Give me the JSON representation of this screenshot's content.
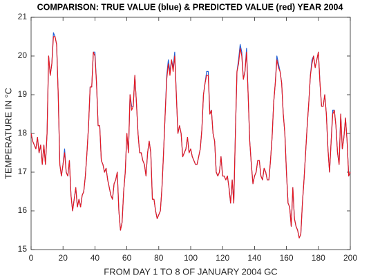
{
  "chart_data": {
    "type": "line",
    "title": "COMPARISON: TRUE VALUE (blue) & PREDICTED VALUE (red) YEAR 2004",
    "x_label": "FROM DAY 1 TO 8 OF JANUARY 2004 GC",
    "y_label": "TEMPERATURE IN °C",
    "x": [
      0,
      1,
      2,
      3,
      4,
      5,
      6,
      7,
      8,
      9,
      10,
      11,
      12,
      13,
      14,
      15,
      16,
      17,
      18,
      19,
      20,
      21,
      22,
      23,
      24,
      25,
      26,
      27,
      28,
      29,
      30,
      31,
      32,
      33,
      34,
      35,
      36,
      37,
      38,
      39,
      40,
      41,
      42,
      43,
      44,
      45,
      46,
      47,
      48,
      49,
      50,
      51,
      52,
      53,
      54,
      55,
      56,
      57,
      58,
      59,
      60,
      61,
      62,
      63,
      64,
      65,
      66,
      67,
      68,
      69,
      70,
      71,
      72,
      73,
      74,
      75,
      76,
      77,
      78,
      79,
      80,
      81,
      82,
      83,
      84,
      85,
      86,
      87,
      88,
      89,
      90,
      91,
      92,
      93,
      94,
      95,
      96,
      97,
      98,
      99,
      100,
      101,
      102,
      103,
      104,
      105,
      106,
      107,
      108,
      109,
      110,
      111,
      112,
      113,
      114,
      115,
      116,
      117,
      118,
      119,
      120,
      121,
      122,
      123,
      124,
      125,
      126,
      127,
      128,
      129,
      130,
      131,
      132,
      133,
      134,
      135,
      136,
      137,
      138,
      139,
      140,
      141,
      142,
      143,
      144,
      145,
      146,
      147,
      148,
      149,
      150,
      151,
      152,
      153,
      154,
      155,
      156,
      157,
      158,
      159,
      160,
      161,
      162,
      163,
      164,
      165,
      166,
      167,
      168,
      169,
      170,
      171,
      172,
      173,
      174,
      175,
      176,
      177,
      178,
      179,
      180,
      181,
      182,
      183,
      184,
      185,
      186,
      187,
      188,
      189,
      190,
      191,
      192,
      193,
      194,
      195,
      196,
      197,
      198,
      199,
      200
    ],
    "series": [
      {
        "name": "TRUE VALUE",
        "color": "#1f5fd6",
        "values": [
          18.0,
          17.8,
          17.7,
          17.6,
          17.9,
          17.5,
          17.7,
          17.2,
          17.7,
          17.2,
          18.0,
          20.0,
          19.5,
          19.8,
          20.6,
          20.5,
          20.3,
          19.0,
          17.2,
          16.9,
          17.2,
          17.6,
          17.0,
          16.9,
          17.3,
          16.4,
          16.0,
          16.3,
          16.6,
          16.1,
          16.3,
          16.1,
          16.4,
          16.5,
          16.9,
          17.5,
          18.2,
          19.2,
          19.2,
          20.1,
          20.1,
          19.3,
          18.2,
          18.2,
          17.3,
          17.2,
          17.0,
          17.1,
          16.8,
          16.6,
          16.4,
          16.3,
          16.7,
          16.8,
          17.0,
          16.0,
          15.5,
          15.7,
          16.5,
          17.0,
          18.0,
          17.5,
          19.0,
          18.7,
          18.7,
          19.5,
          18.8,
          18.0,
          17.5,
          17.5,
          17.3,
          17.2,
          16.9,
          17.5,
          17.8,
          17.5,
          16.3,
          16.3,
          16.0,
          15.8,
          15.9,
          16.0,
          16.6,
          17.5,
          18.5,
          19.5,
          19.9,
          19.6,
          19.9,
          19.7,
          20.1,
          19.0,
          18.0,
          18.2,
          18.0,
          17.4,
          17.5,
          17.6,
          17.9,
          17.5,
          17.6,
          17.4,
          17.3,
          17.2,
          17.2,
          17.4,
          17.6,
          18.1,
          19.0,
          19.3,
          19.6,
          19.6,
          18.5,
          18.6,
          18.0,
          17.8,
          17.0,
          16.9,
          17.0,
          17.4,
          16.9,
          16.9,
          16.8,
          16.9,
          16.6,
          16.2,
          16.8,
          16.2,
          18.0,
          19.6,
          19.9,
          20.3,
          20.1,
          19.4,
          19.6,
          20.2,
          19.0,
          17.8,
          17.2,
          16.7,
          16.9,
          17.0,
          17.3,
          17.3,
          16.9,
          16.8,
          17.1,
          17.0,
          16.8,
          16.8,
          17.3,
          17.9,
          18.8,
          19.3,
          20.0,
          19.8,
          19.6,
          19.3,
          18.5,
          18.0,
          17.0,
          16.2,
          16.1,
          15.6,
          16.6,
          15.8,
          15.6,
          15.5,
          15.3,
          15.4,
          16.2,
          16.8,
          17.5,
          18.2,
          18.8,
          19.5,
          19.9,
          20.0,
          19.7,
          19.9,
          20.1,
          19.3,
          18.7,
          18.7,
          19.0,
          18.5,
          17.6,
          17.0,
          17.8,
          18.6,
          18.6,
          18.2,
          17.5,
          17.2,
          18.5,
          17.6,
          17.9,
          18.4,
          17.8,
          16.9,
          17.0
        ]
      },
      {
        "name": "PREDICTED VALUE",
        "color": "#e8191f",
        "values": [
          18.0,
          17.8,
          17.7,
          17.6,
          17.9,
          17.5,
          17.7,
          17.2,
          17.7,
          17.2,
          18.0,
          20.0,
          19.5,
          19.8,
          20.5,
          20.5,
          20.3,
          19.0,
          17.2,
          16.9,
          17.2,
          17.5,
          17.0,
          16.9,
          17.3,
          16.4,
          16.0,
          16.3,
          16.6,
          16.1,
          16.3,
          16.1,
          16.4,
          16.5,
          16.9,
          17.5,
          18.2,
          19.2,
          19.2,
          20.1,
          20.0,
          19.3,
          18.2,
          18.2,
          17.3,
          17.2,
          17.0,
          17.1,
          16.8,
          16.6,
          16.4,
          16.3,
          16.7,
          16.8,
          17.0,
          16.0,
          15.5,
          15.7,
          16.5,
          17.0,
          18.0,
          17.5,
          19.0,
          18.6,
          18.7,
          19.5,
          18.8,
          18.0,
          17.5,
          17.5,
          17.3,
          17.2,
          16.9,
          17.5,
          17.8,
          17.5,
          16.3,
          16.3,
          16.0,
          15.8,
          15.9,
          16.0,
          16.6,
          17.5,
          18.5,
          19.4,
          19.8,
          19.5,
          19.9,
          19.6,
          20.0,
          19.0,
          18.0,
          18.2,
          18.0,
          17.4,
          17.5,
          17.6,
          17.9,
          17.5,
          17.6,
          17.4,
          17.3,
          17.2,
          17.2,
          17.4,
          17.6,
          18.1,
          19.0,
          19.3,
          19.5,
          19.5,
          18.5,
          18.6,
          18.0,
          17.8,
          17.0,
          16.9,
          17.0,
          17.4,
          16.9,
          16.9,
          16.8,
          16.9,
          16.6,
          16.2,
          16.8,
          16.2,
          18.0,
          19.6,
          19.8,
          20.2,
          20.0,
          19.4,
          19.6,
          20.1,
          19.0,
          17.8,
          17.2,
          16.7,
          16.9,
          17.0,
          17.3,
          17.3,
          16.9,
          16.8,
          17.1,
          17.0,
          16.8,
          16.8,
          17.3,
          17.9,
          18.8,
          19.3,
          19.9,
          19.7,
          19.6,
          19.3,
          18.5,
          18.0,
          17.0,
          16.2,
          16.1,
          15.6,
          16.6,
          15.8,
          15.6,
          15.5,
          15.3,
          15.4,
          16.2,
          16.8,
          17.5,
          18.2,
          18.8,
          19.5,
          19.8,
          20.0,
          19.7,
          19.9,
          20.1,
          19.3,
          18.7,
          18.7,
          19.0,
          18.5,
          17.6,
          17.0,
          17.8,
          18.5,
          18.6,
          18.2,
          17.5,
          17.2,
          18.5,
          17.6,
          17.9,
          18.4,
          17.8,
          16.9,
          17.0
        ]
      }
    ],
    "xlim": [
      0,
      200
    ],
    "xticks": [
      0,
      20,
      40,
      60,
      80,
      100,
      120,
      140,
      160,
      180,
      200
    ],
    "ylim": [
      15,
      21
    ],
    "yticks": [
      15,
      16,
      17,
      18,
      19,
      20,
      21
    ],
    "grid": false
  }
}
